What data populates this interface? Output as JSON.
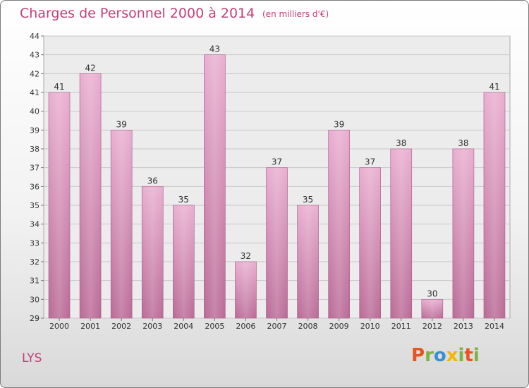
{
  "title": "Charges de Personnel 2000 à 2014",
  "unit": "(en milliers d'€)",
  "location": "LYS",
  "brand": {
    "parts": [
      "P",
      "r",
      "o",
      "x",
      "i",
      "t",
      "i"
    ]
  },
  "colors": {
    "bar": "#d98fb6",
    "text": "#c0407a"
  },
  "chart_data": {
    "type": "bar",
    "categories": [
      "2000",
      "2001",
      "2002",
      "2003",
      "2004",
      "2005",
      "2006",
      "2007",
      "2008",
      "2009",
      "2010",
      "2011",
      "2012",
      "2013",
      "2014"
    ],
    "values": [
      41,
      42,
      39,
      36,
      35,
      43,
      32,
      37,
      35,
      39,
      37,
      38,
      30,
      38,
      41
    ],
    "ylim": [
      29,
      44
    ],
    "yticks": [
      29,
      30,
      31,
      32,
      33,
      34,
      35,
      36,
      37,
      38,
      39,
      40,
      41,
      42,
      43,
      44
    ],
    "grid": true,
    "title": "Charges de Personnel 2000 à 2014",
    "xlabel": "",
    "ylabel": ""
  }
}
